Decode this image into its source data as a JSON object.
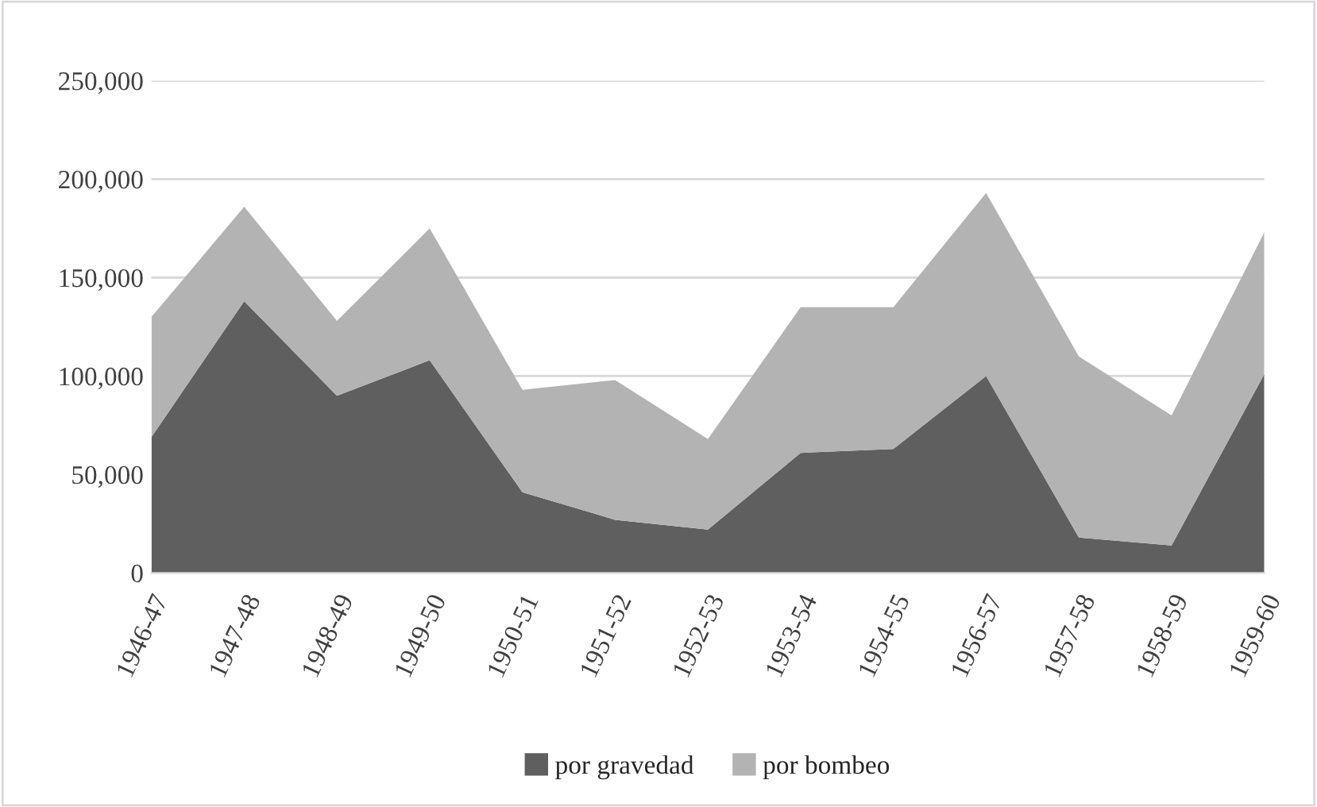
{
  "chart_data": {
    "type": "area",
    "stacked": true,
    "categories": [
      "1946-47",
      "1947-48",
      "1948-49",
      "1949-50",
      "1950-51",
      "1951-52",
      "1952-53",
      "1953-54",
      "1954-55",
      "1956-57",
      "1957-58",
      "1958-59",
      "1959-60"
    ],
    "series": [
      {
        "name": "por gravedad",
        "color": "#5f5f5f",
        "values": [
          69000,
          138000,
          90000,
          108000,
          41000,
          27000,
          22000,
          61000,
          63000,
          100000,
          18000,
          14000,
          101000
        ]
      },
      {
        "name": "por bombeo",
        "color": "#b3b3b3",
        "values": [
          61000,
          48000,
          38000,
          67000,
          52000,
          71000,
          46000,
          74000,
          72000,
          93000,
          92000,
          66000,
          72000
        ]
      }
    ],
    "ylim": [
      0,
      250000
    ],
    "yticks": [
      {
        "value": 0,
        "label": "0"
      },
      {
        "value": 50000,
        "label": "50,000"
      },
      {
        "value": 100000,
        "label": "100,000"
      },
      {
        "value": 150000,
        "label": "150,000"
      },
      {
        "value": 200000,
        "label": "200,000"
      },
      {
        "value": 250000,
        "label": "250,000"
      }
    ],
    "grid": "y",
    "legend": "bottom"
  }
}
